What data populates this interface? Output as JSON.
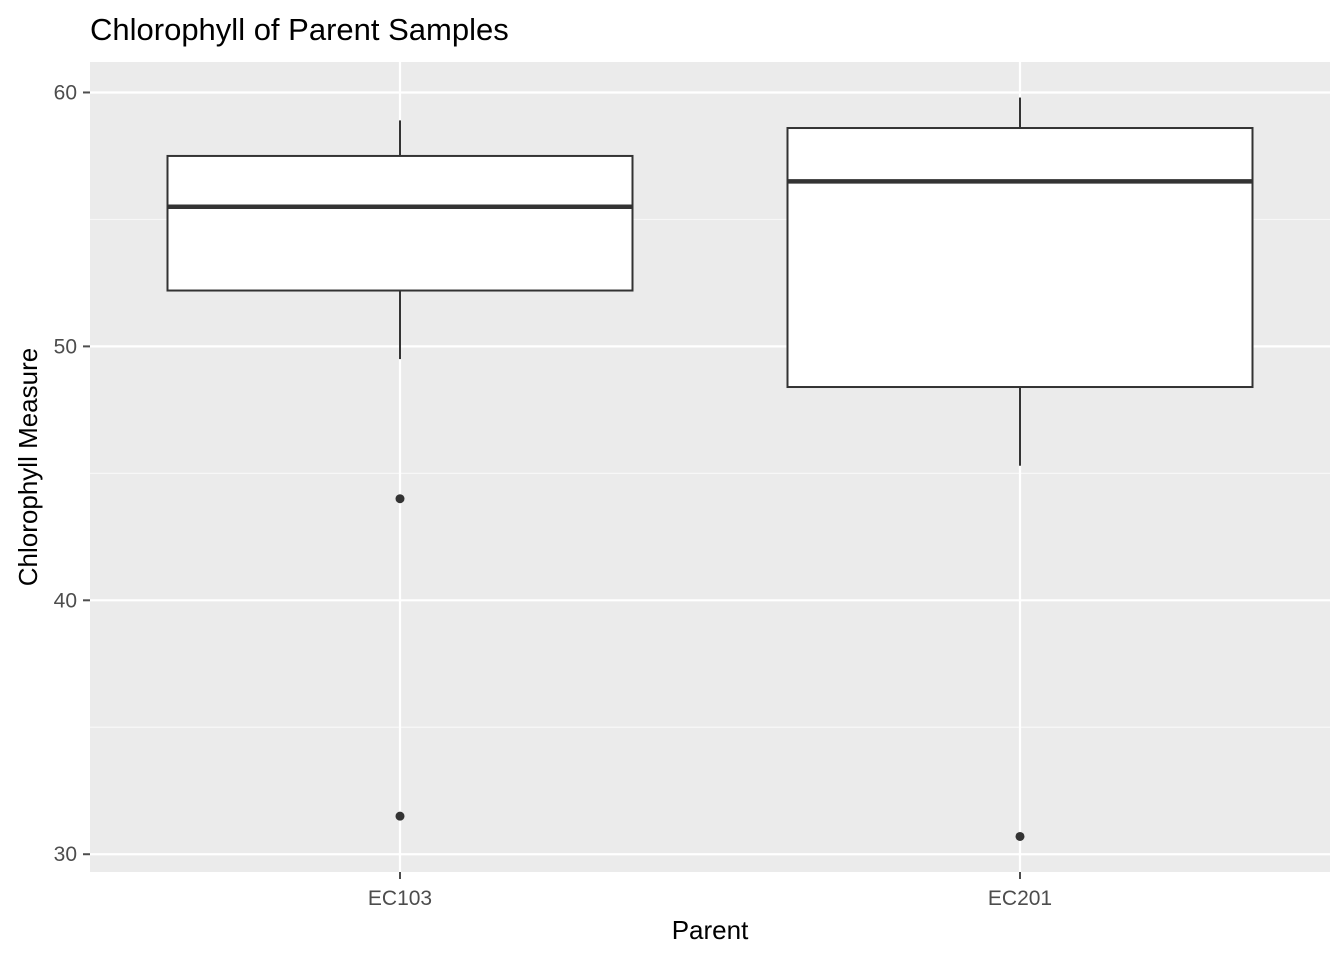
{
  "chart_data": {
    "type": "box",
    "title": "Chlorophyll of Parent Samples",
    "xlabel": "Parent",
    "ylabel": "Chlorophyll Measure",
    "ylim": [
      29.3,
      61.2
    ],
    "y_ticks": [
      30,
      40,
      50,
      60
    ],
    "grid": true,
    "categories": [
      "EC103",
      "EC201"
    ],
    "boxes": [
      {
        "category": "EC103",
        "whisker_low": 49.5,
        "q1": 52.2,
        "median": 55.5,
        "q3": 57.5,
        "whisker_high": 58.9,
        "outliers": [
          44.0,
          31.5
        ]
      },
      {
        "category": "EC201",
        "whisker_low": 45.3,
        "q1": 48.4,
        "median": 56.5,
        "q3": 58.6,
        "whisker_high": 59.8,
        "outliers": [
          30.7
        ]
      }
    ],
    "colors": {
      "panel_background": "#ebebeb",
      "grid_major": "#ffffff",
      "grid_minor": "#f7f7f7",
      "box_fill": "#ffffff",
      "box_stroke": "#333333",
      "tick_color": "#4d4d4d"
    }
  }
}
